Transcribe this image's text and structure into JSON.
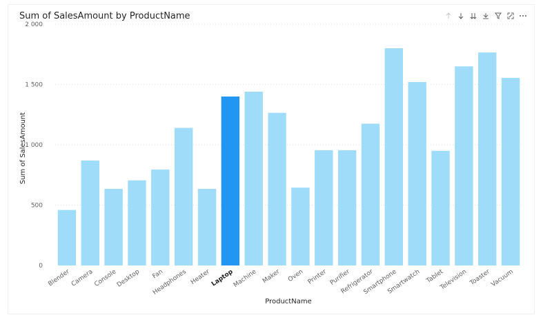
{
  "visual": {
    "title": "Sum of SalesAmount by ProductName",
    "toolbar": [
      {
        "name": "drill-up-icon",
        "label": "Drill up",
        "muted": true
      },
      {
        "name": "drill-down-icon",
        "label": "Drill down",
        "muted": false
      },
      {
        "name": "go-to-next-level-icon",
        "label": "Go to the next level in the hierarchy",
        "muted": false
      },
      {
        "name": "expand-all-icon",
        "label": "Expand all down one level in the hierarchy",
        "muted": false
      },
      {
        "name": "filter-icon",
        "label": "Filters",
        "muted": false
      },
      {
        "name": "focus-mode-icon",
        "label": "Focus mode",
        "muted": false
      },
      {
        "name": "more-options-icon",
        "label": "More options",
        "muted": false
      }
    ]
  },
  "colors": {
    "bar": "#9fdcfa",
    "selected_bar": "#2196f3"
  },
  "chart_data": {
    "type": "bar",
    "title": "Sum of SalesAmount by ProductName",
    "xlabel": "ProductName",
    "ylabel": "Sum of SalesAmount",
    "ylim": [
      0,
      2000
    ],
    "yticks": [
      0,
      500,
      1000,
      1500,
      2000
    ],
    "ytick_labels": [
      "0",
      "500",
      "1 000",
      "1 500",
      "2 000"
    ],
    "grid": true,
    "selected": "Laptop",
    "categories": [
      "Blender",
      "Camera",
      "Console",
      "Desktop",
      "Fan",
      "Headphones",
      "Heater",
      "Laptop",
      "Machine",
      "Maker",
      "Oven",
      "Printer",
      "Purifier",
      "Refrigerator",
      "Smartphone",
      "Smartwatch",
      "Tablet",
      "Television",
      "Toaster",
      "Vacuum"
    ],
    "values": [
      460,
      870,
      635,
      705,
      795,
      1140,
      635,
      1400,
      1440,
      1265,
      645,
      955,
      955,
      1175,
      1800,
      1520,
      950,
      1650,
      1765,
      1555
    ]
  }
}
